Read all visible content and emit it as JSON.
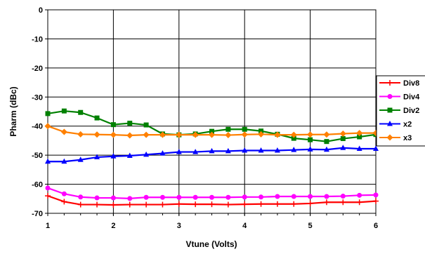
{
  "chart_data": {
    "type": "line",
    "title": "",
    "xlabel": "Vtune (Volts)",
    "ylabel": "Pharm (dBc)",
    "xlim": [
      1,
      6
    ],
    "ylim": [
      -70,
      0
    ],
    "xticks": [
      "1",
      "2",
      "3",
      "4",
      "5",
      "6"
    ],
    "yticks": [
      "0",
      "-10",
      "-20",
      "-30",
      "-40",
      "-50",
      "-60",
      "-70"
    ],
    "grid": true,
    "legend_position": "right",
    "series": [
      {
        "name": "Div8",
        "color": "#ff0000",
        "marker": "plus",
        "x": [
          1,
          1.25,
          1.5,
          1.75,
          2,
          2.25,
          2.5,
          2.75,
          3,
          3.25,
          3.5,
          3.75,
          4,
          4.25,
          4.5,
          4.75,
          5,
          5.25,
          5.5,
          5.75,
          6
        ],
        "y": [
          -64,
          -66,
          -67,
          -67,
          -67.1,
          -67,
          -67,
          -67,
          -66.8,
          -66.9,
          -66.9,
          -67,
          -66.9,
          -66.8,
          -66.8,
          -66.8,
          -66.6,
          -66.2,
          -66.2,
          -66.2,
          -65.8
        ]
      },
      {
        "name": "Div4",
        "color": "#ff00ff",
        "marker": "circle",
        "x": [
          1,
          1.25,
          1.5,
          1.75,
          2,
          2.25,
          2.5,
          2.75,
          3,
          3.25,
          3.5,
          3.75,
          4,
          4.25,
          4.5,
          4.75,
          5,
          5.25,
          5.5,
          5.75,
          6
        ],
        "y": [
          -61.3,
          -63.3,
          -64.4,
          -64.7,
          -64.7,
          -64.9,
          -64.5,
          -64.5,
          -64.5,
          -64.5,
          -64.5,
          -64.5,
          -64.4,
          -64.4,
          -64.2,
          -64.2,
          -64.2,
          -64.2,
          -64.1,
          -63.8,
          -63.7
        ]
      },
      {
        "name": "Div2",
        "color": "#008000",
        "marker": "square",
        "x": [
          1,
          1.25,
          1.5,
          1.75,
          2,
          2.25,
          2.5,
          2.75,
          3,
          3.25,
          3.5,
          3.75,
          4,
          4.25,
          4.5,
          4.75,
          5,
          5.25,
          5.5,
          5.75,
          6
        ],
        "y": [
          -35.7,
          -34.8,
          -35.3,
          -37.2,
          -39.5,
          -39,
          -39.6,
          -42.7,
          -43,
          -42.7,
          -41.8,
          -41.1,
          -41.1,
          -41.7,
          -42.8,
          -44.2,
          -44.7,
          -45.3,
          -44.3,
          -43.7,
          -42.9
        ]
      },
      {
        "name": "x2",
        "color": "#0000ff",
        "marker": "triangle",
        "x": [
          1,
          1.25,
          1.5,
          1.75,
          2,
          2.25,
          2.5,
          2.75,
          3,
          3.25,
          3.5,
          3.75,
          4,
          4.25,
          4.5,
          4.75,
          5,
          5.25,
          5.5,
          5.75,
          6
        ],
        "y": [
          -52.2,
          -52.2,
          -51.6,
          -50.7,
          -50.4,
          -50.2,
          -49.8,
          -49.4,
          -48.9,
          -48.9,
          -48.6,
          -48.6,
          -48.4,
          -48.4,
          -48.4,
          -48.2,
          -48,
          -48.1,
          -47.5,
          -47.8,
          -47.8
        ]
      },
      {
        "name": "x3",
        "color": "#ff8000",
        "marker": "diamond",
        "x": [
          1,
          1.25,
          1.5,
          1.75,
          2,
          2.25,
          2.5,
          2.75,
          3,
          3.25,
          3.5,
          3.75,
          4,
          4.25,
          4.5,
          4.75,
          5,
          5.25,
          5.5,
          5.75,
          6
        ],
        "y": [
          -40,
          -42,
          -42.8,
          -42.9,
          -43,
          -43.2,
          -43,
          -43,
          -43,
          -43,
          -43,
          -43.1,
          -42.9,
          -42.8,
          -43,
          -43,
          -42.9,
          -42.9,
          -42.6,
          -42.4,
          -42.4
        ]
      }
    ]
  }
}
